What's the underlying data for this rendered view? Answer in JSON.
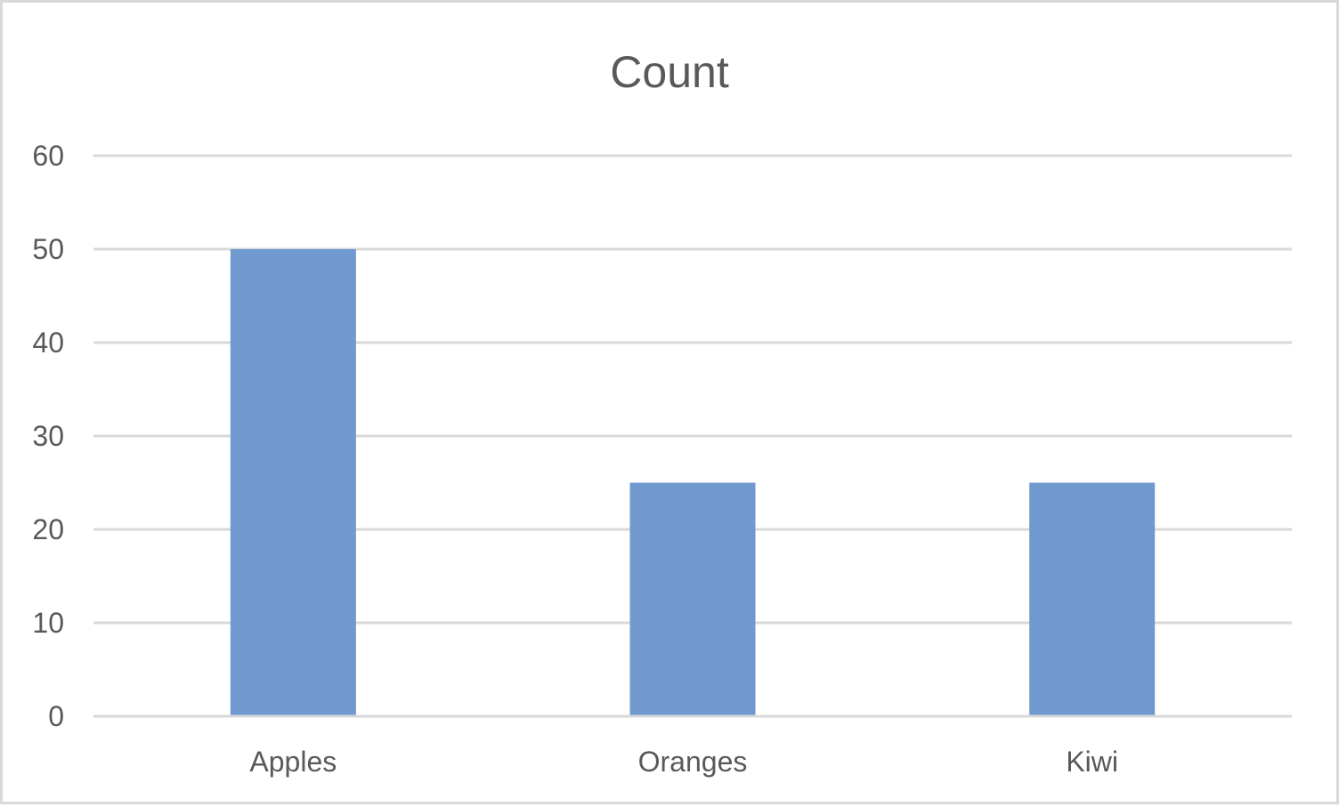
{
  "chart_data": {
    "type": "bar",
    "title": "Count",
    "categories": [
      "Apples",
      "Oranges",
      "Kiwi"
    ],
    "values": [
      50,
      25,
      25
    ],
    "xlabel": "",
    "ylabel": "",
    "ylim": [
      0,
      60
    ],
    "yticks": [
      "0",
      "10",
      "20",
      "30",
      "40",
      "50",
      "60"
    ],
    "grid": true,
    "legend": "none",
    "colors": {
      "bar": "#7099CF",
      "grid": "#D9D9D9",
      "text": "#595959",
      "border": "#D9D9D9"
    }
  }
}
